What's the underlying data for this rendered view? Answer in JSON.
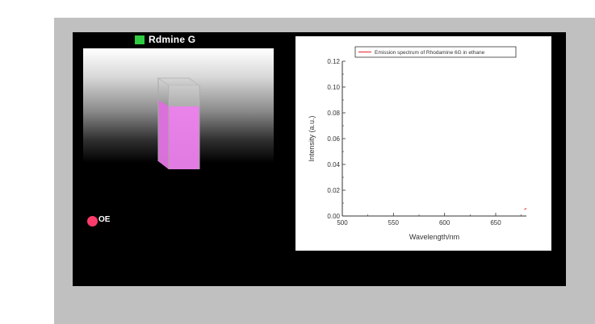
{
  "sample": {
    "title": "Rdmine G",
    "chip_color": "#2ecc40",
    "liquid_color": "#ee82ee"
  },
  "toggle": {
    "label": "OE",
    "color": "#ff3b6b"
  },
  "chart_data": {
    "type": "line",
    "title": "",
    "xlabel": "Wavelength/nm",
    "ylabel": "Intensity (a.u.)",
    "xlim": [
      500,
      680
    ],
    "ylim": [
      0.0,
      0.12
    ],
    "xticks": [
      "500",
      "550",
      "600",
      "650"
    ],
    "yticks": [
      "0.00",
      "0.02",
      "0.04",
      "0.06",
      "0.08",
      "0.10",
      "0.12"
    ],
    "legend_position": "top-right",
    "grid": false,
    "series": [
      {
        "name": "Emission spectrum of Rhodamine 6G in ethane",
        "color": "#e8262a",
        "x": [
          678,
          680
        ],
        "y": [
          0.005,
          0.006
        ]
      }
    ]
  }
}
